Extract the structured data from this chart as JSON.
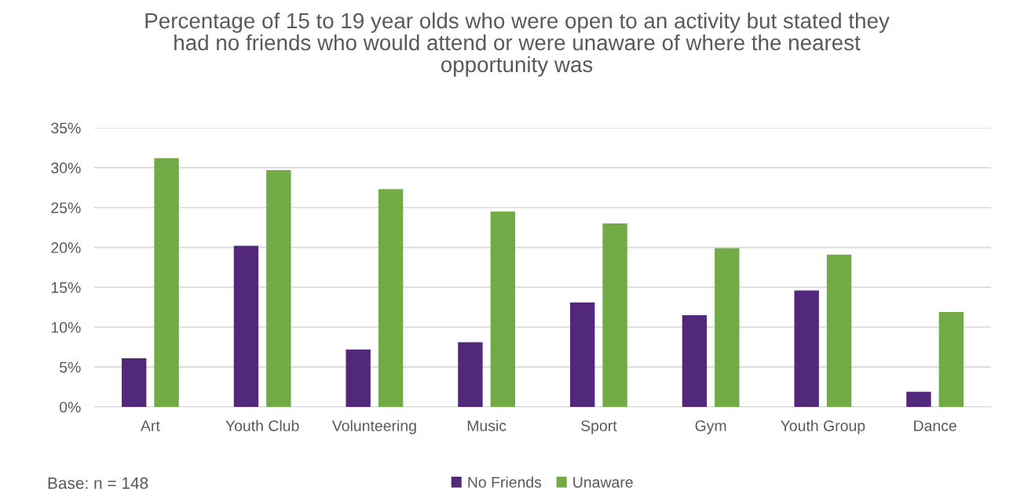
{
  "chart_data": {
    "type": "bar",
    "title": "Percentage of 15 to 19 year olds who were open to an activity but stated they had no friends who would attend or were unaware of where the nearest opportunity was",
    "categories": [
      "Art",
      "Youth Club",
      "Volunteering",
      "Music",
      "Sport",
      "Gym",
      "Youth Group",
      "Dance"
    ],
    "series": [
      {
        "name": "No Friends",
        "color": "#52287a",
        "values": [
          6.1,
          20.2,
          7.2,
          8.1,
          13.1,
          11.5,
          14.6,
          1.9
        ]
      },
      {
        "name": "Unaware",
        "color": "#70ab46",
        "values": [
          31.2,
          29.7,
          27.3,
          24.5,
          23.0,
          19.9,
          19.1,
          11.9
        ]
      }
    ],
    "ylim": [
      0,
      35
    ],
    "yticks": [
      {
        "value": 0,
        "label": "0%"
      },
      {
        "value": 5,
        "label": "5%"
      },
      {
        "value": 10,
        "label": "10%"
      },
      {
        "value": 15,
        "label": "15%"
      },
      {
        "value": 20,
        "label": "20%"
      },
      {
        "value": 25,
        "label": "25%"
      },
      {
        "value": 30,
        "label": "30%"
      },
      {
        "value": 35,
        "label": "35%"
      }
    ],
    "grid": "y",
    "legend": "bottom",
    "annotations": [
      "Base: n = 148"
    ]
  }
}
